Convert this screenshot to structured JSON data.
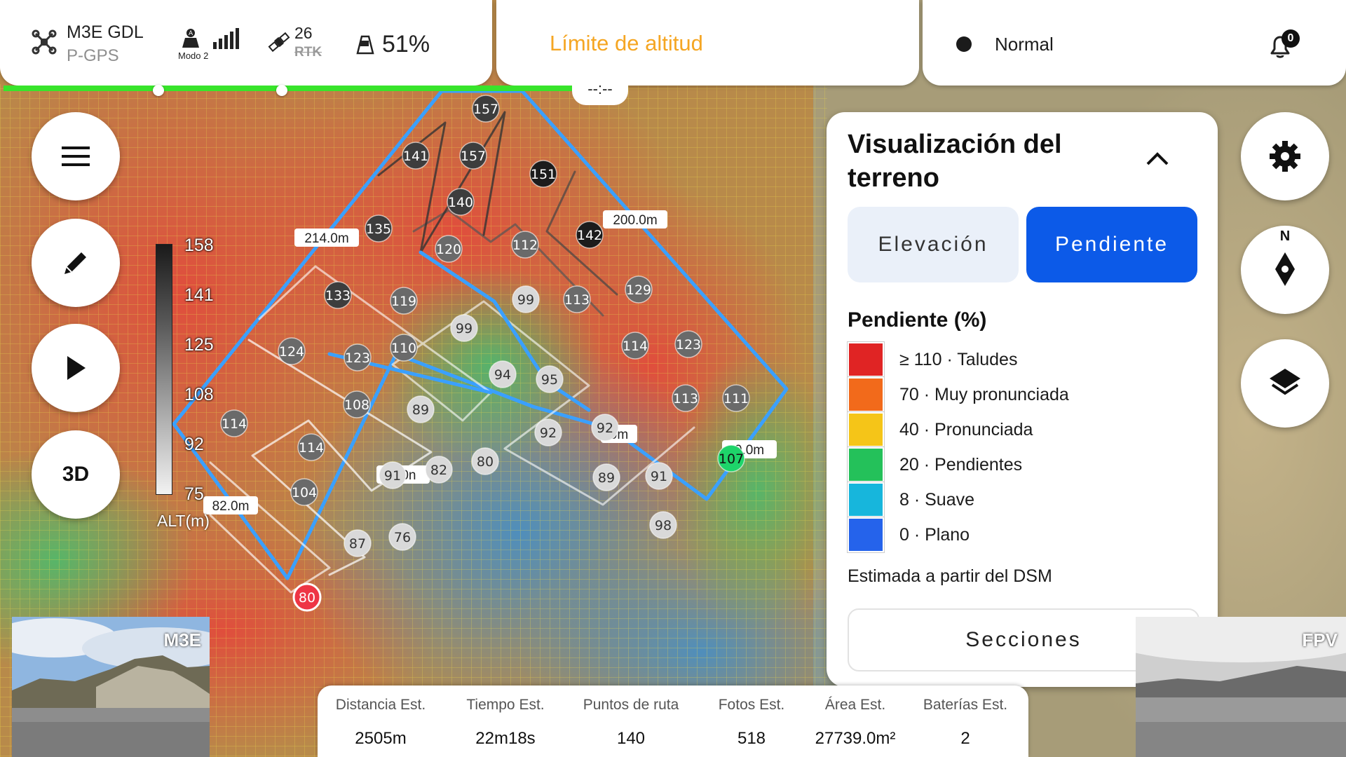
{
  "status_bar": {
    "aircraft_model": "M3E GDL",
    "positioning": "P-GPS",
    "control_mode": "Modo 2",
    "satellite_count": "26",
    "rtk_label": "RTK",
    "battery": "51%",
    "alert": "Límite de altitud",
    "flight_mode": "Normal",
    "notifications": "0",
    "time_readout": "--:--"
  },
  "left_toolbar": {
    "view_3d_label": "3D"
  },
  "altitude_scale": {
    "ticks": [
      "158",
      "141",
      "125",
      "108",
      "92",
      "75"
    ],
    "unit": "ALT(m)"
  },
  "map": {
    "waypoints": [
      {
        "label": "157",
        "shade": "dark"
      },
      {
        "label": "141",
        "shade": "dark"
      },
      {
        "label": "157",
        "shade": "dark"
      },
      {
        "label": "151",
        "shade": "black"
      },
      {
        "label": "140",
        "shade": "dark"
      },
      {
        "label": "135",
        "shade": "dark"
      },
      {
        "label": "142",
        "shade": "black"
      },
      {
        "label": "120",
        "shade": "mid"
      },
      {
        "label": "112",
        "shade": "mid"
      },
      {
        "label": "133",
        "shade": "dark"
      },
      {
        "label": "119",
        "shade": "mid"
      },
      {
        "label": "99",
        "shade": "light"
      },
      {
        "label": "113",
        "shade": "mid"
      },
      {
        "label": "129",
        "shade": "mid"
      },
      {
        "label": "99",
        "shade": "light"
      },
      {
        "label": "124",
        "shade": "mid"
      },
      {
        "label": "123",
        "shade": "mid"
      },
      {
        "label": "110",
        "shade": "mid"
      },
      {
        "label": "114",
        "shade": "mid"
      },
      {
        "label": "123",
        "shade": "mid"
      },
      {
        "label": "94",
        "shade": "light"
      },
      {
        "label": "95",
        "shade": "light"
      },
      {
        "label": "108",
        "shade": "mid"
      },
      {
        "label": "89",
        "shade": "light"
      },
      {
        "label": "113",
        "shade": "mid"
      },
      {
        "label": "111",
        "shade": "mid"
      },
      {
        "label": "114",
        "shade": "mid"
      },
      {
        "label": "92",
        "shade": "light"
      },
      {
        "label": "92",
        "shade": "light"
      },
      {
        "label": "114",
        "shade": "mid"
      },
      {
        "label": "80",
        "shade": "light"
      },
      {
        "label": "107",
        "shade": "green"
      },
      {
        "label": "91",
        "shade": "light"
      },
      {
        "label": "82",
        "shade": "light"
      },
      {
        "label": "89",
        "shade": "light"
      },
      {
        "label": "91",
        "shade": "light"
      },
      {
        "label": "104",
        "shade": "mid"
      },
      {
        "label": "98",
        "shade": "light"
      },
      {
        "label": "76",
        "shade": "light"
      },
      {
        "label": "87",
        "shade": "light"
      },
      {
        "label": "80",
        "shade": "red"
      }
    ],
    "distance_labels": [
      "214.0m",
      "200.0m",
      "82.0m",
      "1.0n",
      "0m",
      "0.0m"
    ]
  },
  "terrain_panel": {
    "title": "Visualización del terreno",
    "tabs": {
      "elevation": "Elevación",
      "slope": "Pendiente"
    },
    "active_tab": "Pendiente",
    "legend_title": "Pendiente (%)",
    "legend": [
      {
        "label": "≥ 110 · Taludes",
        "color": "#e02424"
      },
      {
        "label": "70 · Muy pronunciada",
        "color": "#f26a1b"
      },
      {
        "label": "40 · Pronunciada",
        "color": "#f5c518"
      },
      {
        "label": "20 · Pendientes",
        "color": "#24c15a"
      },
      {
        "label": "8 · Suave",
        "color": "#17b6dc"
      },
      {
        "label": "0 · Plano",
        "color": "#2563eb"
      }
    ],
    "note": "Estimada a partir del DSM",
    "sections_button": "Secciones"
  },
  "compass": {
    "north": "N"
  },
  "cameras": {
    "main": "M3E",
    "fpv": "FPV"
  },
  "stats": [
    {
      "label": "Distancia Est.",
      "value": "2505m"
    },
    {
      "label": "Tiempo Est.",
      "value": "22m18s"
    },
    {
      "label": "Puntos de ruta",
      "value": "140"
    },
    {
      "label": "Fotos Est.",
      "value": "518"
    },
    {
      "label": "Área Est.",
      "value": "27739.0m²"
    },
    {
      "label": "Baterías Est.",
      "value": "2"
    }
  ],
  "colors": {
    "accent": "#0c5ae8",
    "route": "#3aa0ff",
    "progress": "#38e42b",
    "alert": "#f5a623"
  }
}
